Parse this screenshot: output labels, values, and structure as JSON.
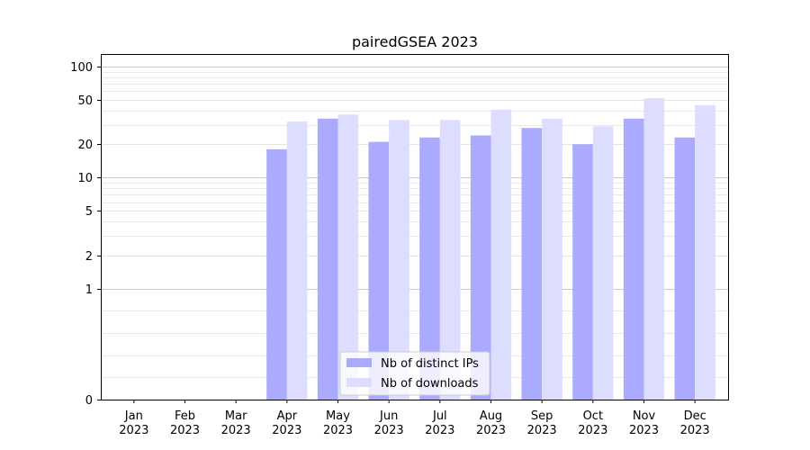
{
  "chart_data": {
    "type": "bar",
    "title": "pairedGSEA 2023",
    "xlabel": "",
    "ylabel": "",
    "yscale": "symlog",
    "ylim": [
      0,
      130
    ],
    "y_ticks": [
      0,
      1,
      2,
      5,
      10,
      20,
      50,
      100
    ],
    "grid": true,
    "legend_position": "bottom-center",
    "categories": [
      [
        "Jan",
        "2023"
      ],
      [
        "Feb",
        "2023"
      ],
      [
        "Mar",
        "2023"
      ],
      [
        "Apr",
        "2023"
      ],
      [
        "May",
        "2023"
      ],
      [
        "Jun",
        "2023"
      ],
      [
        "Jul",
        "2023"
      ],
      [
        "Aug",
        "2023"
      ],
      [
        "Sep",
        "2023"
      ],
      [
        "Oct",
        "2023"
      ],
      [
        "Nov",
        "2023"
      ],
      [
        "Dec",
        "2023"
      ]
    ],
    "series": [
      {
        "name": "Nb of distinct IPs",
        "color": "#aaaaff",
        "values": [
          0,
          0,
          0,
          18,
          34,
          21,
          23,
          24,
          28,
          20,
          34,
          23
        ]
      },
      {
        "name": "Nb of downloads",
        "color": "#ddddff",
        "values": [
          0,
          0,
          0,
          32,
          37,
          33,
          33,
          41,
          34,
          29,
          52,
          45
        ]
      }
    ]
  }
}
